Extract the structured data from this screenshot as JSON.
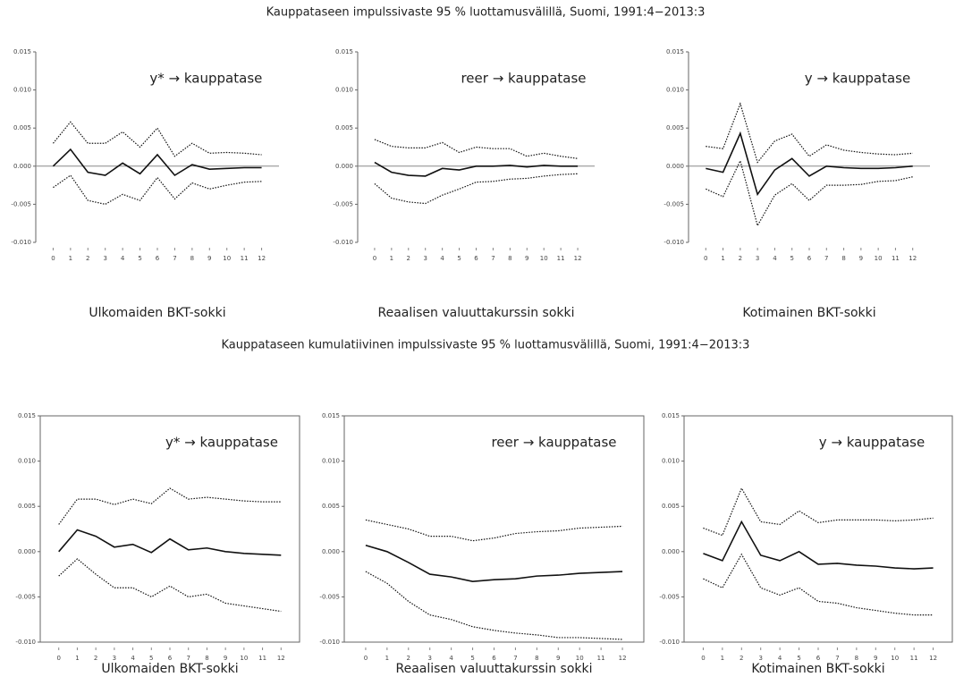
{
  "headings": [
    "Kauppataseen impulssivaste 95 % luottamusvälillä, Suomi, 1991:4−2013:3",
    "Kauppataseen kumulatiivinen impulssivaste 95 % luottamusvälillä, Suomi, 1991:4−2013:3"
  ],
  "chart_data": [
    {
      "type": "line",
      "title": "y* → kauppatase",
      "xlabel": "Ulkomaiden BKT-sokki",
      "zero_line": true,
      "frame": false,
      "x": [
        0,
        1,
        2,
        3,
        4,
        5,
        6,
        7,
        8,
        9,
        10,
        11,
        12
      ],
      "xlim": [
        -1,
        13
      ],
      "xticks": [
        0,
        1,
        2,
        3,
        4,
        5,
        6,
        7,
        8,
        9,
        10,
        11,
        12
      ],
      "ylim": [
        -0.01,
        0.015
      ],
      "yticks": [
        {
          "value": -0.01,
          "label": "-0.010"
        },
        -0.005,
        {
          "value": 0,
          "label": "0.000"
        },
        0.005,
        {
          "value": 0.01,
          "label": "0.010"
        },
        0.015
      ],
      "series": [
        {
          "color": "#111",
          "dash": "solid",
          "values": [
            0,
            0.0022,
            -0.0008,
            -0.0012,
            0.0004,
            -0.001,
            0.0015,
            -0.0012,
            0.0002,
            -0.0004,
            -0.0003,
            -0.0002,
            -0.0002
          ]
        },
        {
          "color": "#111",
          "dash": "dotted",
          "values": [
            0.003,
            0.0058,
            0.003,
            0.003,
            0.0045,
            0.0025,
            0.005,
            0.0013,
            0.003,
            0.0017,
            0.0018,
            0.0017,
            0.0015
          ]
        },
        {
          "color": "#111",
          "dash": "dotted",
          "values": [
            -0.0028,
            -0.0012,
            -0.0045,
            -0.005,
            -0.0037,
            -0.0045,
            -0.0015,
            -0.0043,
            -0.0022,
            -0.003,
            -0.0025,
            -0.0021,
            -0.002
          ]
        }
      ]
    },
    {
      "type": "line",
      "title": "reer → kauppatase",
      "xlabel": "Reaalisen valuuttakurssin sokki",
      "zero_line": true,
      "frame": false,
      "x": [
        0,
        1,
        2,
        3,
        4,
        5,
        6,
        7,
        8,
        9,
        10,
        11,
        12
      ],
      "xlim": [
        -1,
        13
      ],
      "xticks": [
        0,
        1,
        2,
        3,
        4,
        5,
        6,
        7,
        8,
        9,
        10,
        11,
        12
      ],
      "ylim": [
        -0.01,
        0.015
      ],
      "yticks": [
        {
          "value": -0.01,
          "label": "-0.010"
        },
        -0.005,
        {
          "value": 0,
          "label": "0.000"
        },
        0.005,
        {
          "value": 0.01,
          "label": "0.010"
        },
        0.015
      ],
      "series": [
        {
          "color": "#111",
          "dash": "solid",
          "values": [
            0.0005,
            -0.0008,
            -0.0012,
            -0.0013,
            -0.0003,
            -0.0005,
            0,
            0,
            0.0001,
            -0.0001,
            0.0001,
            0,
            0
          ]
        },
        {
          "color": "#111",
          "dash": "dotted",
          "values": [
            0.0035,
            0.0026,
            0.0024,
            0.0024,
            0.0031,
            0.0018,
            0.0025,
            0.0023,
            0.0023,
            0.0013,
            0.0017,
            0.0013,
            0.001
          ]
        },
        {
          "color": "#111",
          "dash": "dotted",
          "values": [
            -0.0023,
            -0.0042,
            -0.0047,
            -0.0049,
            -0.0038,
            -0.003,
            -0.0021,
            -0.002,
            -0.0017,
            -0.0016,
            -0.0013,
            -0.0011,
            -0.001
          ]
        }
      ]
    },
    {
      "type": "line",
      "title": "y → kauppatase",
      "xlabel": "Kotimainen BKT-sokki",
      "zero_line": true,
      "frame": false,
      "x": [
        0,
        1,
        2,
        3,
        4,
        5,
        6,
        7,
        8,
        9,
        10,
        11,
        12
      ],
      "xlim": [
        -1,
        13
      ],
      "xticks": [
        0,
        1,
        2,
        3,
        4,
        5,
        6,
        7,
        8,
        9,
        10,
        11,
        12
      ],
      "ylim": [
        -0.01,
        0.015
      ],
      "yticks": [
        {
          "value": -0.01,
          "label": "-0.010"
        },
        -0.005,
        {
          "value": 0,
          "label": "0.000"
        },
        0.005,
        {
          "value": 0.01,
          "label": "0.010"
        },
        0.015
      ],
      "series": [
        {
          "color": "#111",
          "dash": "solid",
          "values": [
            -0.0003,
            -0.0008,
            0.0043,
            -0.0037,
            -0.0005,
            0.001,
            -0.0013,
            0,
            -0.0002,
            -0.0003,
            -0.0003,
            -0.0002,
            0
          ]
        },
        {
          "color": "#111",
          "dash": "dotted",
          "values": [
            0.0026,
            0.0023,
            0.0082,
            0.0005,
            0.0033,
            0.0042,
            0.0013,
            0.0028,
            0.0021,
            0.0018,
            0.0016,
            0.0015,
            0.0017
          ]
        },
        {
          "color": "#111",
          "dash": "dotted",
          "values": [
            -0.003,
            -0.004,
            0.0007,
            -0.0078,
            -0.0038,
            -0.0023,
            -0.0045,
            -0.0025,
            -0.0025,
            -0.0024,
            -0.002,
            -0.0019,
            -0.0014
          ]
        }
      ]
    },
    {
      "type": "line",
      "title": "y* → kauppatase",
      "xlabel": "Ulkomaiden BKT-sokki",
      "zero_line": false,
      "frame": true,
      "x": [
        0,
        1,
        2,
        3,
        4,
        5,
        6,
        7,
        8,
        9,
        10,
        11,
        12
      ],
      "xlim": [
        -1,
        13
      ],
      "xticks": [
        0,
        1,
        2,
        3,
        4,
        5,
        6,
        7,
        8,
        9,
        10,
        11,
        12
      ],
      "ylim": [
        -0.01,
        0.015
      ],
      "yticks": [
        {
          "value": -0.01,
          "label": "-0.010"
        },
        -0.005,
        {
          "value": 0,
          "label": "0.000"
        },
        0.005,
        {
          "value": 0.01,
          "label": "0.010"
        },
        0.015
      ],
      "series": [
        {
          "color": "#111",
          "dash": "solid",
          "values": [
            0,
            0.0024,
            0.0017,
            0.0005,
            0.0008,
            -0.0001,
            0.0014,
            0.0002,
            0.0004,
            0,
            -0.0002,
            -0.0003,
            -0.0004
          ]
        },
        {
          "color": "#111",
          "dash": "dotted",
          "values": [
            0.003,
            0.0058,
            0.0058,
            0.0052,
            0.0058,
            0.0053,
            0.007,
            0.0058,
            0.006,
            0.0058,
            0.0056,
            0.0055,
            0.0055
          ]
        },
        {
          "color": "#111",
          "dash": "dotted",
          "values": [
            -0.0027,
            -0.0008,
            -0.0025,
            -0.004,
            -0.004,
            -0.005,
            -0.0038,
            -0.005,
            -0.0047,
            -0.0057,
            -0.006,
            -0.0063,
            -0.0066
          ]
        }
      ]
    },
    {
      "type": "line",
      "title": "reer → kauppatase",
      "xlabel": "Reaalisen valuuttakurssin sokki",
      "zero_line": false,
      "frame": true,
      "x": [
        0,
        1,
        2,
        3,
        4,
        5,
        6,
        7,
        8,
        9,
        10,
        11,
        12
      ],
      "xlim": [
        -1,
        13
      ],
      "xticks": [
        0,
        1,
        2,
        3,
        4,
        5,
        6,
        7,
        8,
        9,
        10,
        11,
        12
      ],
      "ylim": [
        -0.01,
        0.015
      ],
      "yticks": [
        {
          "value": -0.01,
          "label": "-0.010"
        },
        -0.005,
        {
          "value": 0,
          "label": "0.000"
        },
        0.005,
        {
          "value": 0.01,
          "label": "0.010"
        },
        0.015
      ],
      "series": [
        {
          "color": "#111",
          "dash": "solid",
          "values": [
            0.0007,
            0,
            -0.0012,
            -0.0025,
            -0.0028,
            -0.0033,
            -0.0031,
            -0.003,
            -0.0027,
            -0.0026,
            -0.0024,
            -0.0023,
            -0.0022
          ]
        },
        {
          "color": "#111",
          "dash": "dotted",
          "values": [
            0.0035,
            0.003,
            0.0025,
            0.0017,
            0.0017,
            0.0012,
            0.0015,
            0.002,
            0.0022,
            0.0023,
            0.0026,
            0.0027,
            0.0028
          ]
        },
        {
          "color": "#111",
          "dash": "dotted",
          "values": [
            -0.0022,
            -0.0035,
            -0.0055,
            -0.007,
            -0.0075,
            -0.0083,
            -0.0087,
            -0.009,
            -0.0092,
            -0.0095,
            -0.0095,
            -0.0096,
            -0.0097
          ]
        }
      ]
    },
    {
      "type": "line",
      "title": "y → kauppatase",
      "xlabel": "Kotimainen BKT-sokki",
      "zero_line": false,
      "frame": true,
      "x": [
        0,
        1,
        2,
        3,
        4,
        5,
        6,
        7,
        8,
        9,
        10,
        11,
        12
      ],
      "xlim": [
        -1,
        13
      ],
      "xticks": [
        0,
        1,
        2,
        3,
        4,
        5,
        6,
        7,
        8,
        9,
        10,
        11,
        12
      ],
      "ylim": [
        -0.01,
        0.015
      ],
      "yticks": [
        {
          "value": -0.01,
          "label": "-0.010"
        },
        -0.005,
        {
          "value": 0,
          "label": "0.000"
        },
        0.005,
        {
          "value": 0.01,
          "label": "0.010"
        },
        0.015
      ],
      "series": [
        {
          "color": "#111",
          "dash": "solid",
          "values": [
            -0.0002,
            -0.001,
            0.0033,
            -0.0004,
            -0.001,
            0,
            -0.0014,
            -0.0013,
            -0.0015,
            -0.0016,
            -0.0018,
            -0.0019,
            -0.0018
          ]
        },
        {
          "color": "#111",
          "dash": "dotted",
          "values": [
            0.0026,
            0.0018,
            0.007,
            0.0033,
            0.003,
            0.0045,
            0.0032,
            0.0035,
            0.0035,
            0.0035,
            0.0034,
            0.0035,
            0.0037
          ]
        },
        {
          "color": "#111",
          "dash": "dotted",
          "values": [
            -0.003,
            -0.004,
            -0.0003,
            -0.004,
            -0.0048,
            -0.004,
            -0.0055,
            -0.0057,
            -0.0062,
            -0.0065,
            -0.0068,
            -0.007,
            -0.007
          ]
        }
      ]
    }
  ]
}
